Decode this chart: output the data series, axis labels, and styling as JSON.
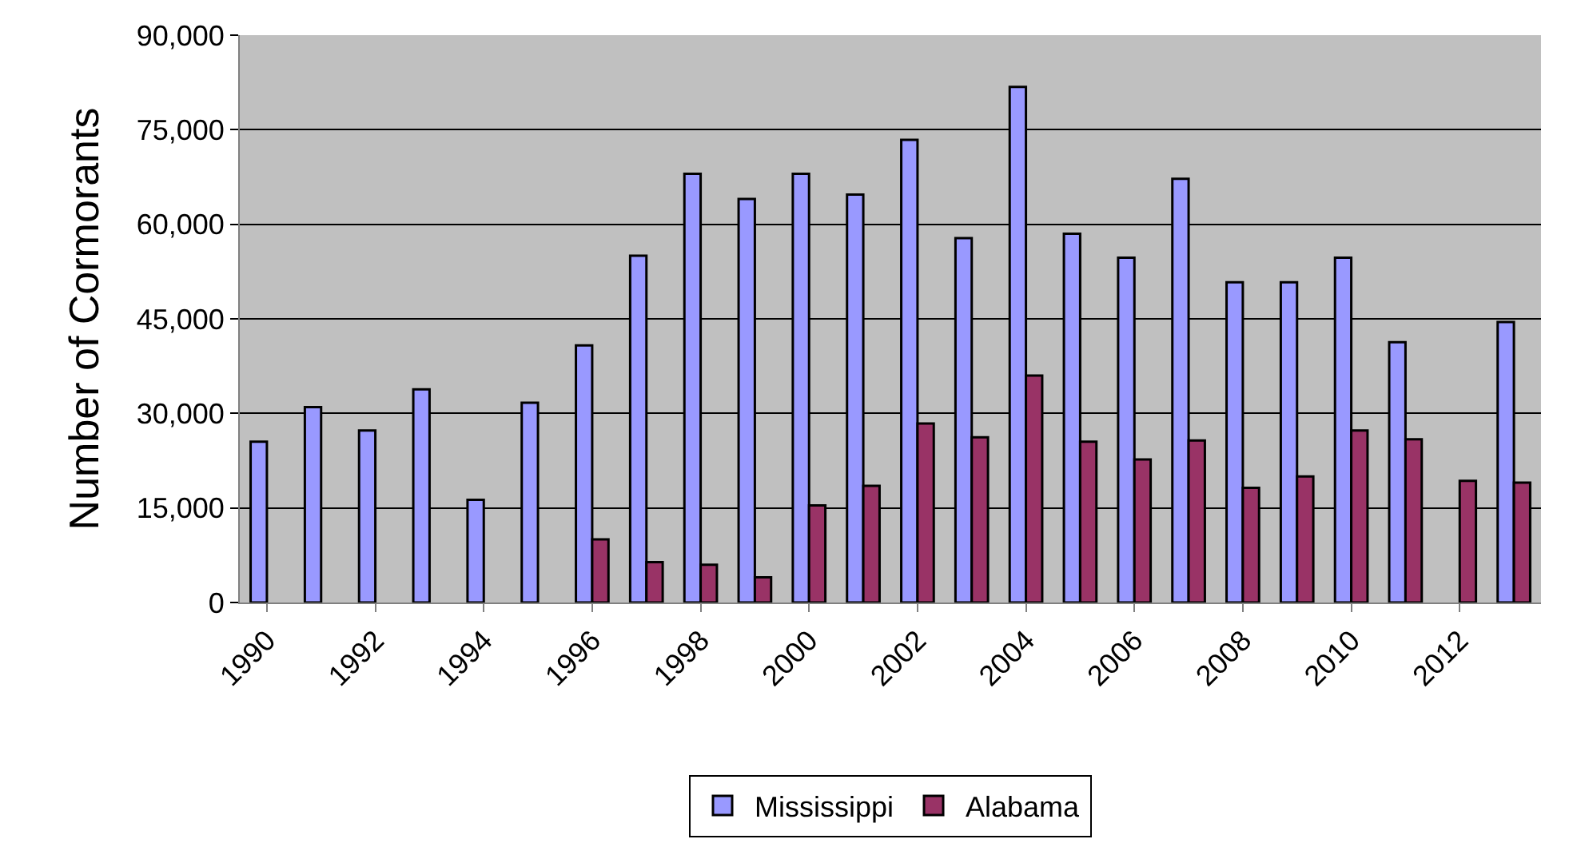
{
  "chart_data": {
    "type": "bar",
    "ylabel": "Number of Cormorants",
    "categories": [
      "1990",
      null,
      "1992",
      null,
      "1994",
      null,
      "1996",
      null,
      "1998",
      null,
      "2000",
      null,
      "2002",
      null,
      "2004",
      null,
      "2006",
      null,
      "2008",
      null,
      "2010",
      null,
      "2012",
      null
    ],
    "series": [
      {
        "name": "Mississippi",
        "color": "#9999ff",
        "values": [
          25500,
          31000,
          27300,
          33800,
          16300,
          31700,
          40800,
          55000,
          68000,
          64000,
          68000,
          64700,
          73400,
          57800,
          81800,
          58500,
          54700,
          67200,
          50800,
          50800,
          54700,
          41300,
          null,
          44500
        ]
      },
      {
        "name": "Alabama",
        "color": "#993366",
        "values": [
          null,
          null,
          null,
          null,
          null,
          null,
          10000,
          6400,
          6000,
          4000,
          15400,
          18500,
          28400,
          26200,
          36000,
          25500,
          22700,
          25700,
          18200,
          20000,
          27300,
          25900,
          19300,
          19000
        ]
      }
    ],
    "ylim": [
      0,
      90000
    ],
    "yticks": [
      {
        "value": 0,
        "label": "0"
      },
      {
        "value": 15000,
        "label": "15,000"
      },
      {
        "value": 30000,
        "label": "30,000"
      },
      {
        "value": 45000,
        "label": "45,000"
      },
      {
        "value": 60000,
        "label": "60,000"
      },
      {
        "value": 75000,
        "label": "75,000"
      },
      {
        "value": 90000,
        "label": "90,000"
      }
    ],
    "grid": "y",
    "legend": "bottom"
  }
}
